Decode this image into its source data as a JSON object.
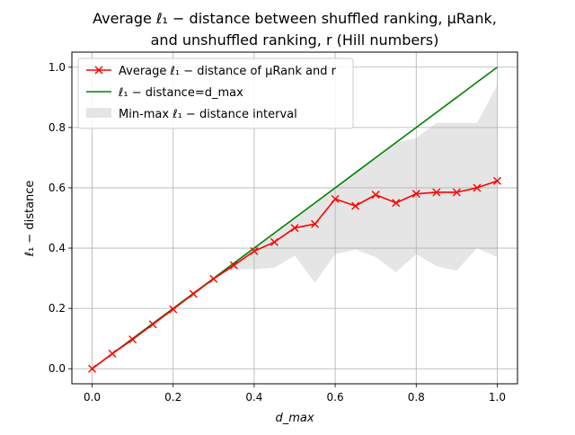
{
  "chart_data": {
    "type": "line",
    "title_line1": "Average ℓ₁ − distance between shuffled ranking, μRank,",
    "title_line2": "and unshuffled ranking, r (Hill numbers)",
    "xlabel": "d_max",
    "ylabel": "ℓ₁ − distance",
    "xlim": [
      -0.05,
      1.05
    ],
    "ylim": [
      -0.05,
      1.05
    ],
    "xticks": [
      "0.0",
      "0.2",
      "0.4",
      "0.6",
      "0.8",
      "1.0"
    ],
    "yticks": [
      "0.0",
      "0.2",
      "0.4",
      "0.6",
      "0.8",
      "1.0"
    ],
    "grid": true,
    "legend_position": "top-left",
    "x": [
      0.0,
      0.05,
      0.1,
      0.15,
      0.2,
      0.25,
      0.3,
      0.35,
      0.4,
      0.45,
      0.5,
      0.55,
      0.6,
      0.65,
      0.7,
      0.75,
      0.8,
      0.85,
      0.9,
      0.95,
      1.0
    ],
    "series": [
      {
        "name": "Average ℓ₁ − distance of μRank and r",
        "color": "#ff0000",
        "marker": "x",
        "values": [
          0.0,
          0.05,
          0.097,
          0.147,
          0.197,
          0.248,
          0.298,
          0.343,
          0.39,
          0.42,
          0.467,
          0.48,
          0.563,
          0.54,
          0.577,
          0.55,
          0.58,
          0.585,
          0.585,
          0.6,
          0.623
        ]
      },
      {
        "name": "ℓ₁ − distance=d_max",
        "color": "#008000",
        "values": [
          0.0,
          0.05,
          0.1,
          0.15,
          0.2,
          0.25,
          0.3,
          0.35,
          0.4,
          0.45,
          0.5,
          0.55,
          0.6,
          0.65,
          0.7,
          0.75,
          0.8,
          0.85,
          0.9,
          0.95,
          1.0
        ]
      }
    ],
    "band": {
      "name": "Min-max ℓ₁ − distance interval",
      "color": "#e5e5e5",
      "lower": [
        0.0,
        0.05,
        0.1,
        0.15,
        0.2,
        0.25,
        0.3,
        0.33,
        0.33,
        0.335,
        0.375,
        0.285,
        0.38,
        0.395,
        0.37,
        0.32,
        0.38,
        0.34,
        0.325,
        0.4,
        0.37
      ],
      "upper": [
        0.0,
        0.05,
        0.1,
        0.15,
        0.2,
        0.25,
        0.3,
        0.35,
        0.4,
        0.45,
        0.5,
        0.55,
        0.6,
        0.65,
        0.7,
        0.75,
        0.765,
        0.815,
        0.815,
        0.815,
        0.94
      ]
    }
  }
}
